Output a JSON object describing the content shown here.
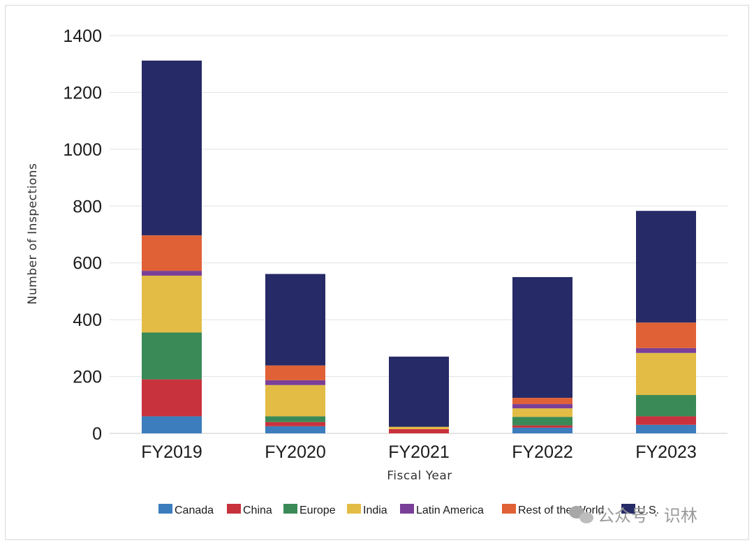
{
  "chart_data": {
    "type": "bar",
    "stacked": true,
    "title": "",
    "xlabel": "Fiscal Year",
    "ylabel": "Number of Inspections",
    "ylim": [
      0,
      1400
    ],
    "yticks": [
      0,
      200,
      400,
      600,
      800,
      1000,
      1200,
      1400
    ],
    "grid": true,
    "legend_position": "bottom",
    "categories": [
      "FY2019",
      "FY2020",
      "FY2021",
      "FY2022",
      "FY2023"
    ],
    "series": [
      {
        "name": "Canada",
        "color": "#3b7dbd",
        "values": [
          60,
          25,
          0,
          20,
          30
        ]
      },
      {
        "name": "China",
        "color": "#c8323d",
        "values": [
          130,
          15,
          15,
          8,
          30
        ]
      },
      {
        "name": "Europe",
        "color": "#3a8a57",
        "values": [
          165,
          20,
          0,
          30,
          75
        ]
      },
      {
        "name": "India",
        "color": "#e3bc45",
        "values": [
          200,
          110,
          8,
          30,
          148
        ]
      },
      {
        "name": "Latin America",
        "color": "#7a3f98",
        "values": [
          17,
          17,
          0,
          15,
          17
        ]
      },
      {
        "name": "Rest of the World",
        "color": "#e06136",
        "values": [
          125,
          52,
          0,
          22,
          90
        ]
      },
      {
        "name": "U.S.",
        "color": "#262a66",
        "values": [
          615,
          322,
          247,
          425,
          393
        ]
      }
    ]
  },
  "watermark": {
    "text": "公众号 · 识林"
  }
}
